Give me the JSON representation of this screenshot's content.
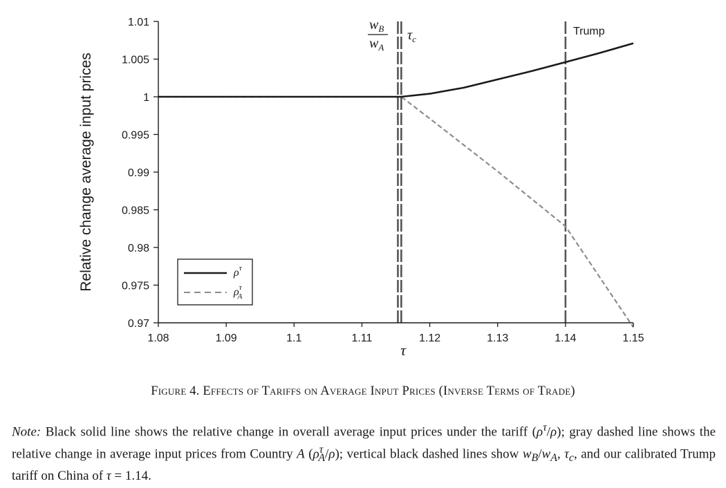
{
  "chart_data": {
    "type": "line",
    "title": "",
    "xlabel": "τ",
    "ylabel": "Relative change average input prices",
    "xlim": [
      1.08,
      1.15
    ],
    "ylim": [
      0.97,
      1.01
    ],
    "x_ticks": [
      "1.08",
      "1.09",
      "1.1",
      "1.11",
      "1.12",
      "1.13",
      "1.14",
      "1.15"
    ],
    "y_ticks": [
      "1.01",
      "1.005",
      "1",
      "0.995",
      "0.99",
      "0.985",
      "0.98",
      "0.975",
      "0.97"
    ],
    "series": [
      {
        "name": "ρ^τ",
        "style": "solid",
        "color": "#1a1a1a",
        "x": [
          1.08,
          1.1158,
          1.12,
          1.125,
          1.13,
          1.135,
          1.14,
          1.145,
          1.15
        ],
        "y": [
          1.0,
          1.0,
          1.0004,
          1.0012,
          1.0023,
          1.0034,
          1.0046,
          1.0058,
          1.0071
        ]
      },
      {
        "name": "ρ_A^τ",
        "style": "dashed",
        "color": "#8c8c8c",
        "x": [
          1.08,
          1.1158,
          1.12,
          1.13,
          1.14,
          1.15
        ],
        "y": [
          1.0,
          1.0,
          0.9971,
          0.9901,
          0.9828,
          0.9694
        ]
      }
    ],
    "vlines": [
      {
        "x": 1.1153,
        "color": "#555555"
      },
      {
        "x": 1.1158,
        "color": "#555555"
      },
      {
        "x": 1.14,
        "color": "#555555"
      }
    ],
    "annotations": {
      "wb": "w",
      "wb_sub": "B",
      "wa": "w",
      "wa_sub": "A",
      "tau_c": "τ",
      "tau_c_sub": "c",
      "trump": "Trump"
    },
    "legend": {
      "position": "bottom-left",
      "items": [
        {
          "base": "ρ",
          "sup": "τ",
          "sub": ""
        },
        {
          "base": "ρ",
          "sup": "τ",
          "sub": "A"
        }
      ]
    }
  },
  "caption": {
    "main": "Figure 4. Effects of Tariffs on Average Input Prices (Inverse Terms of Trade)"
  },
  "note": {
    "label": "Note:",
    "p1": " Black solid line shows the relative change in overall average input prices under the tariff (",
    "p2": "ρ",
    "p2_sup": "τ",
    "p3": "/",
    "p4": "ρ",
    "p5": "); gray dashed line shows the relative change in average input prices from Country ",
    "p6": "A",
    "p7": " (",
    "p8": "ρ",
    "p8_sup": "τ",
    "p8_sub": "A",
    "p9": "/",
    "p10": "ρ",
    "p11": "); vertical black dashed lines show ",
    "p12": "w",
    "p12_sub": "B",
    "p13": "/",
    "p14": "w",
    "p14_sub": "A",
    "p15": ", ",
    "p16": "τ",
    "p16_sub": "c",
    "p17": ", and our calibrated Trump tariff on China of ",
    "p18": "τ",
    "p19": " = 1.14."
  }
}
